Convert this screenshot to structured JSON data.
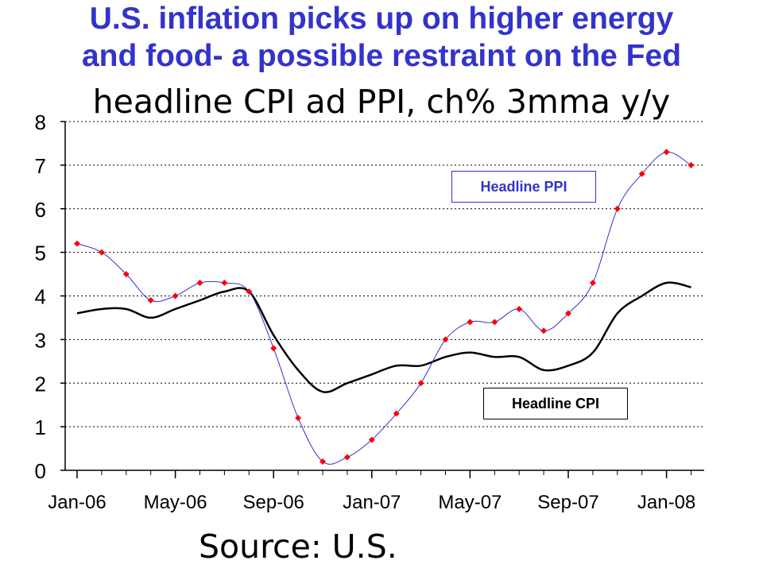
{
  "header": {
    "title_line1": "U.S. inflation picks up on higher energy",
    "title_line2": "and food- a possible restraint on the Fed",
    "subtitle": "headline CPI ad PPI, ch% 3mma y/y"
  },
  "footer": {
    "source": "Source: U.S."
  },
  "colors": {
    "title": "#3333cc",
    "ppi_line": "#3333cc",
    "ppi_marker": "#ff0000",
    "cpi_line": "#000000"
  },
  "chart_data": {
    "type": "line",
    "title": "headline CPI ad PPI, ch% 3mma y/y",
    "xlabel": "",
    "ylabel": "",
    "ylim": [
      0,
      8
    ],
    "yticks": [
      "0",
      "1",
      "2",
      "3",
      "4",
      "5",
      "6",
      "7",
      "8"
    ],
    "xticks": [
      "Jan-06",
      "May-06",
      "Sep-06",
      "Jan-07",
      "May-07",
      "Sep-07",
      "Jan-08"
    ],
    "grid": "horizontal dotted",
    "x": [
      "Jan-06",
      "Feb-06",
      "Mar-06",
      "Apr-06",
      "May-06",
      "Jun-06",
      "Jul-06",
      "Aug-06",
      "Sep-06",
      "Oct-06",
      "Nov-06",
      "Dec-06",
      "Jan-07",
      "Feb-07",
      "Mar-07",
      "Apr-07",
      "May-07",
      "Jun-07",
      "Jul-07",
      "Aug-07",
      "Sep-07",
      "Oct-07",
      "Nov-07",
      "Dec-07",
      "Jan-08",
      "Feb-08"
    ],
    "series": [
      {
        "name": "Headline PPI",
        "values": [
          5.2,
          5.0,
          4.5,
          3.9,
          4.0,
          4.3,
          4.3,
          4.1,
          2.8,
          1.2,
          0.2,
          0.3,
          0.7,
          1.3,
          2.0,
          3.0,
          3.4,
          3.4,
          3.7,
          3.2,
          3.6,
          4.3,
          6.0,
          6.8,
          7.3,
          7.0
        ]
      },
      {
        "name": "Headline CPI",
        "values": [
          3.6,
          3.7,
          3.7,
          3.5,
          3.7,
          3.9,
          4.1,
          4.1,
          3.1,
          2.3,
          1.8,
          2.0,
          2.2,
          2.4,
          2.4,
          2.6,
          2.7,
          2.6,
          2.6,
          2.3,
          2.4,
          2.7,
          3.6,
          4.0,
          4.3,
          4.2
        ]
      }
    ],
    "annotations": [
      "Headline PPI",
      "Headline CPI"
    ]
  }
}
